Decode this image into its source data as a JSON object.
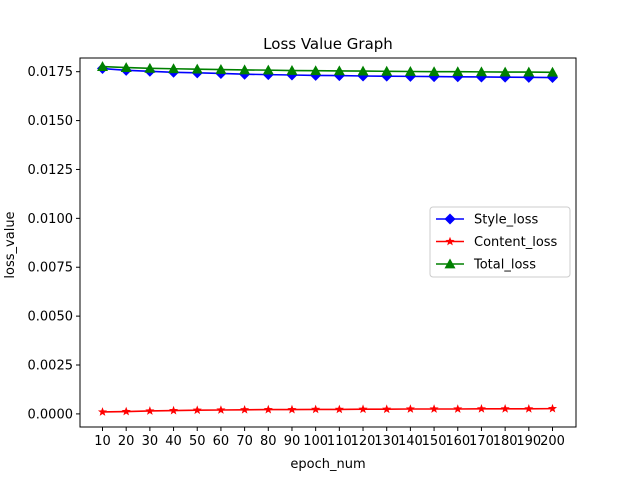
{
  "chart_data": {
    "type": "line",
    "title": "Loss Value Graph",
    "xlabel": "epoch_num",
    "ylabel": "loss_value",
    "categories": [
      "10",
      "20",
      "30",
      "40",
      "50",
      "60",
      "70",
      "80",
      "90",
      "100",
      "110",
      "120",
      "130",
      "140",
      "150",
      "160",
      "170",
      "180",
      "190",
      "200"
    ],
    "ylim": [
      -0.00067,
      0.0182
    ],
    "yticks": [
      "0.0000",
      "0.0025",
      "0.0050",
      "0.0075",
      "0.0100",
      "0.0125",
      "0.0150",
      "0.0175"
    ],
    "ytick_values": [
      0,
      0.0025,
      0.005,
      0.0075,
      0.01,
      0.0125,
      0.015,
      0.0175
    ],
    "grid": false,
    "legend_position": "center-right",
    "series": [
      {
        "name": "Style_loss",
        "color": "#0000ff",
        "marker": "diamond",
        "values": [
          0.01766,
          0.01757,
          0.01752,
          0.01747,
          0.01744,
          0.01741,
          0.01737,
          0.01735,
          0.01733,
          0.01731,
          0.0173,
          0.01728,
          0.01727,
          0.01726,
          0.01725,
          0.01724,
          0.01723,
          0.01722,
          0.01721,
          0.0172
        ]
      },
      {
        "name": "Content_loss",
        "color": "#ff0000",
        "marker": "star",
        "values": [
          0.0001,
          0.00012,
          0.00015,
          0.00017,
          0.00019,
          0.0002,
          0.00021,
          0.00022,
          0.00022,
          0.00023,
          0.00023,
          0.00024,
          0.00024,
          0.00025,
          0.00025,
          0.00025,
          0.00026,
          0.00026,
          0.00026,
          0.00027
        ]
      },
      {
        "name": "Total_loss",
        "color": "#008000",
        "marker": "triangle",
        "values": [
          0.01776,
          0.01771,
          0.01767,
          0.01765,
          0.01763,
          0.01761,
          0.01759,
          0.01758,
          0.01756,
          0.01755,
          0.01754,
          0.01753,
          0.01752,
          0.01751,
          0.0175,
          0.0175,
          0.01749,
          0.01748,
          0.01748,
          0.01747
        ]
      }
    ]
  }
}
